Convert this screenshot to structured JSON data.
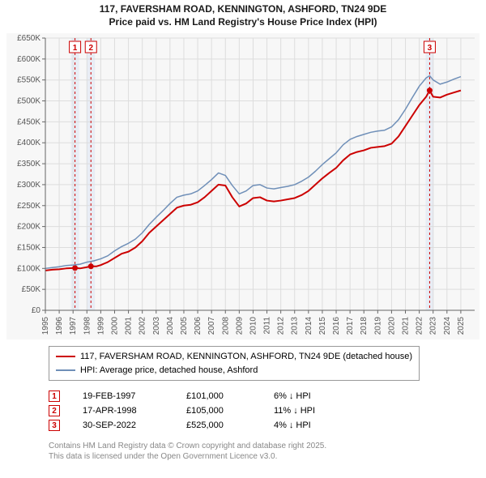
{
  "title_line1": "117, FAVERSHAM ROAD, KENNINGTON, ASHFORD, TN24 9DE",
  "title_line2": "Price paid vs. HM Land Registry's House Price Index (HPI)",
  "chart": {
    "type": "line",
    "background_color": "#f7f7f7",
    "plot_background": "#f7f7f7",
    "grid_color": "#dddddd",
    "axis_color": "#666666",
    "tick_font_size": 10,
    "tick_color": "#555555",
    "x_axis": {
      "min": 1995,
      "max": 2026,
      "ticks": [
        1995,
        1996,
        1997,
        1998,
        1999,
        2000,
        2001,
        2002,
        2003,
        2004,
        2005,
        2006,
        2007,
        2008,
        2009,
        2010,
        2011,
        2012,
        2013,
        2014,
        2015,
        2016,
        2017,
        2018,
        2019,
        2020,
        2021,
        2022,
        2023,
        2024,
        2025
      ],
      "tick_labels": [
        "1995",
        "1996",
        "1997",
        "1998",
        "1999",
        "2000",
        "2001",
        "2002",
        "2003",
        "2004",
        "2005",
        "2006",
        "2007",
        "2008",
        "2009",
        "2010",
        "2011",
        "2012",
        "2013",
        "2014",
        "2015",
        "2016",
        "2017",
        "2018",
        "2019",
        "2020",
        "2021",
        "2022",
        "2023",
        "2024",
        "2025"
      ]
    },
    "y_axis": {
      "min": 0,
      "max": 650000,
      "ticks": [
        0,
        50000,
        100000,
        150000,
        200000,
        250000,
        300000,
        350000,
        400000,
        450000,
        500000,
        550000,
        600000,
        650000
      ],
      "tick_labels": [
        "£0",
        "£50K",
        "£100K",
        "£150K",
        "£200K",
        "£250K",
        "£300K",
        "£350K",
        "£400K",
        "£450K",
        "£500K",
        "£550K",
        "£600K",
        "£650K"
      ]
    },
    "sale_bands": [
      {
        "x": 1997.14,
        "label": "1",
        "stripe_color": "#e8edf5"
      },
      {
        "x": 1998.29,
        "label": "2",
        "stripe_color": "#e8edf5"
      },
      {
        "x": 2022.75,
        "label": "3",
        "stripe_color": "#e8edf5"
      }
    ],
    "series": [
      {
        "name": "property",
        "label": "117, FAVERSHAM ROAD, KENNINGTON, ASHFORD, TN24 9DE (detached house)",
        "color": "#cc0000",
        "line_width": 2,
        "points": [
          [
            1995.0,
            95000
          ],
          [
            1995.5,
            97000
          ],
          [
            1996.0,
            98000
          ],
          [
            1996.5,
            100000
          ],
          [
            1997.14,
            101000
          ],
          [
            1997.5,
            100000
          ],
          [
            1998.0,
            103000
          ],
          [
            1998.29,
            105000
          ],
          [
            1998.7,
            105000
          ],
          [
            1999.0,
            108000
          ],
          [
            1999.5,
            115000
          ],
          [
            2000.0,
            125000
          ],
          [
            2000.5,
            135000
          ],
          [
            2001.0,
            140000
          ],
          [
            2001.5,
            150000
          ],
          [
            2002.0,
            165000
          ],
          [
            2002.5,
            185000
          ],
          [
            2003.0,
            200000
          ],
          [
            2003.5,
            215000
          ],
          [
            2004.0,
            230000
          ],
          [
            2004.5,
            245000
          ],
          [
            2005.0,
            250000
          ],
          [
            2005.5,
            252000
          ],
          [
            2006.0,
            258000
          ],
          [
            2006.5,
            270000
          ],
          [
            2007.0,
            285000
          ],
          [
            2007.5,
            300000
          ],
          [
            2008.0,
            298000
          ],
          [
            2008.5,
            270000
          ],
          [
            2009.0,
            248000
          ],
          [
            2009.5,
            255000
          ],
          [
            2010.0,
            268000
          ],
          [
            2010.5,
            270000
          ],
          [
            2011.0,
            262000
          ],
          [
            2011.5,
            260000
          ],
          [
            2012.0,
            262000
          ],
          [
            2012.5,
            265000
          ],
          [
            2013.0,
            268000
          ],
          [
            2013.5,
            275000
          ],
          [
            2014.0,
            285000
          ],
          [
            2014.5,
            300000
          ],
          [
            2015.0,
            315000
          ],
          [
            2015.5,
            328000
          ],
          [
            2016.0,
            340000
          ],
          [
            2016.5,
            358000
          ],
          [
            2017.0,
            372000
          ],
          [
            2017.5,
            378000
          ],
          [
            2018.0,
            382000
          ],
          [
            2018.5,
            388000
          ],
          [
            2019.0,
            390000
          ],
          [
            2019.5,
            392000
          ],
          [
            2020.0,
            398000
          ],
          [
            2020.5,
            415000
          ],
          [
            2021.0,
            440000
          ],
          [
            2021.5,
            465000
          ],
          [
            2022.0,
            490000
          ],
          [
            2022.5,
            510000
          ],
          [
            2022.75,
            525000
          ],
          [
            2023.0,
            510000
          ],
          [
            2023.5,
            508000
          ],
          [
            2024.0,
            515000
          ],
          [
            2024.5,
            520000
          ],
          [
            2025.0,
            525000
          ]
        ],
        "sale_markers": [
          {
            "x": 1997.14,
            "y": 101000
          },
          {
            "x": 1998.29,
            "y": 105000
          },
          {
            "x": 2022.75,
            "y": 525000
          }
        ]
      },
      {
        "name": "hpi",
        "label": "HPI: Average price, detached house, Ashford",
        "color": "#6f8fb8",
        "line_width": 1.5,
        "points": [
          [
            1995.0,
            100000
          ],
          [
            1995.5,
            102000
          ],
          [
            1996.0,
            104000
          ],
          [
            1996.5,
            107000
          ],
          [
            1997.0,
            108000
          ],
          [
            1997.5,
            110000
          ],
          [
            1998.0,
            115000
          ],
          [
            1998.5,
            118000
          ],
          [
            1999.0,
            123000
          ],
          [
            1999.5,
            130000
          ],
          [
            2000.0,
            142000
          ],
          [
            2000.5,
            152000
          ],
          [
            2001.0,
            160000
          ],
          [
            2001.5,
            170000
          ],
          [
            2002.0,
            185000
          ],
          [
            2002.5,
            205000
          ],
          [
            2003.0,
            222000
          ],
          [
            2003.5,
            238000
          ],
          [
            2004.0,
            255000
          ],
          [
            2004.5,
            270000
          ],
          [
            2005.0,
            275000
          ],
          [
            2005.5,
            278000
          ],
          [
            2006.0,
            285000
          ],
          [
            2006.5,
            298000
          ],
          [
            2007.0,
            312000
          ],
          [
            2007.5,
            328000
          ],
          [
            2008.0,
            322000
          ],
          [
            2008.5,
            298000
          ],
          [
            2009.0,
            278000
          ],
          [
            2009.5,
            285000
          ],
          [
            2010.0,
            298000
          ],
          [
            2010.5,
            300000
          ],
          [
            2011.0,
            292000
          ],
          [
            2011.5,
            290000
          ],
          [
            2012.0,
            293000
          ],
          [
            2012.5,
            296000
          ],
          [
            2013.0,
            300000
          ],
          [
            2013.5,
            308000
          ],
          [
            2014.0,
            318000
          ],
          [
            2014.5,
            332000
          ],
          [
            2015.0,
            348000
          ],
          [
            2015.5,
            362000
          ],
          [
            2016.0,
            376000
          ],
          [
            2016.5,
            395000
          ],
          [
            2017.0,
            408000
          ],
          [
            2017.5,
            415000
          ],
          [
            2018.0,
            420000
          ],
          [
            2018.5,
            425000
          ],
          [
            2019.0,
            428000
          ],
          [
            2019.5,
            430000
          ],
          [
            2020.0,
            438000
          ],
          [
            2020.5,
            455000
          ],
          [
            2021.0,
            480000
          ],
          [
            2021.5,
            508000
          ],
          [
            2022.0,
            535000
          ],
          [
            2022.5,
            555000
          ],
          [
            2022.75,
            560000
          ],
          [
            2023.0,
            550000
          ],
          [
            2023.5,
            540000
          ],
          [
            2024.0,
            545000
          ],
          [
            2024.5,
            552000
          ],
          [
            2025.0,
            558000
          ]
        ]
      }
    ]
  },
  "legend": {
    "items": [
      {
        "color": "#cc0000",
        "label": "117, FAVERSHAM ROAD, KENNINGTON, ASHFORD, TN24 9DE (detached house)"
      },
      {
        "color": "#6f8fb8",
        "label": "HPI: Average price, detached house, Ashford"
      }
    ]
  },
  "sales": [
    {
      "marker": "1",
      "date": "19-FEB-1997",
      "price": "£101,000",
      "diff_pct": "6%",
      "diff_dir": "↓",
      "diff_suffix": "HPI"
    },
    {
      "marker": "2",
      "date": "17-APR-1998",
      "price": "£105,000",
      "diff_pct": "11%",
      "diff_dir": "↓",
      "diff_suffix": "HPI"
    },
    {
      "marker": "3",
      "date": "30-SEP-2022",
      "price": "£525,000",
      "diff_pct": "4%",
      "diff_dir": "↓",
      "diff_suffix": "HPI"
    }
  ],
  "credit_line1": "Contains HM Land Registry data © Crown copyright and database right 2025.",
  "credit_line2": "This data is licensed under the Open Government Licence v3.0."
}
